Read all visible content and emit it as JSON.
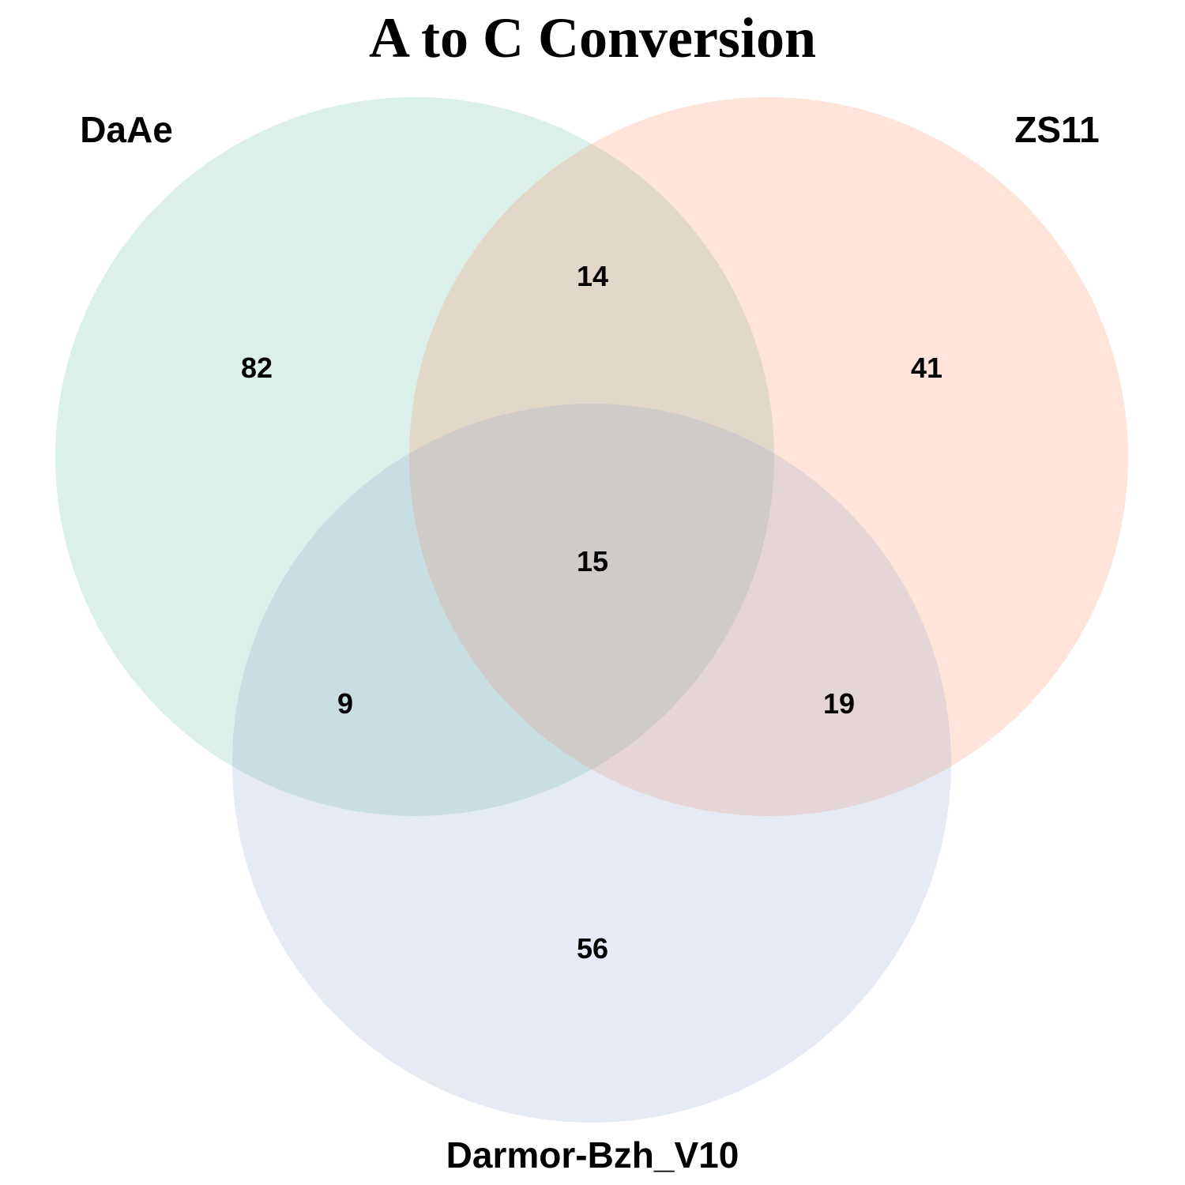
{
  "title": "A to C Conversion",
  "sets": [
    {
      "name": "DaAe",
      "color": "#66C2A5"
    },
    {
      "name": "ZS11",
      "color": "#FC8D62"
    },
    {
      "name": "Darmor-Bzh_V10",
      "color": "#8DA0CB"
    }
  ],
  "counts": {
    "daae_only": "82",
    "zs11_only": "41",
    "darmor_only": "56",
    "daae_zs11": "14",
    "daae_darmor": "9",
    "zs11_darmor": "19",
    "all_three": "15"
  }
}
